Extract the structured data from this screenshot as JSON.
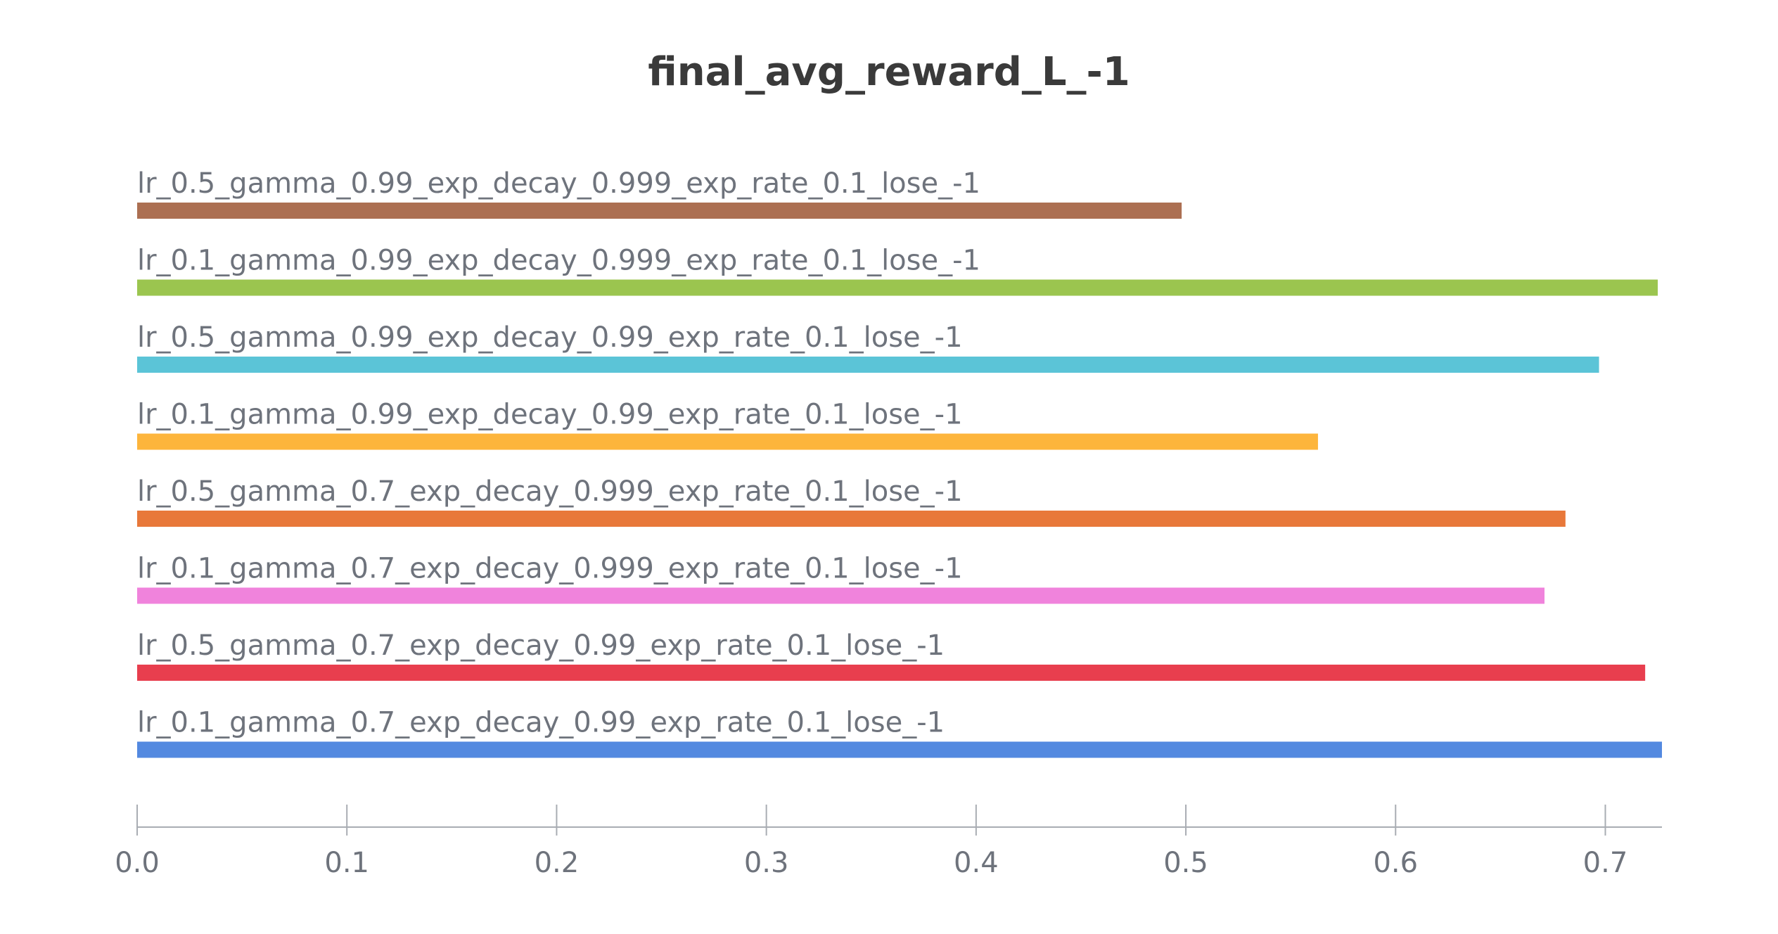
{
  "chart_data": {
    "type": "bar",
    "orientation": "horizontal",
    "title": "final_avg_reward_L_-1",
    "xlim": [
      0,
      0.727
    ],
    "xticks": [
      0.0,
      0.1,
      0.2,
      0.3,
      0.4,
      0.5,
      0.6,
      0.7
    ],
    "xtick_labels": [
      "0.0",
      "0.1",
      "0.2",
      "0.3",
      "0.4",
      "0.5",
      "0.6",
      "0.7"
    ],
    "grid": false,
    "bars": [
      {
        "label": "lr_0.5_gamma_0.99_exp_decay_0.999_exp_rate_0.1_lose_-1",
        "value": 0.498,
        "color": "#ac6f52"
      },
      {
        "label": "lr_0.1_gamma_0.99_exp_decay_0.999_exp_rate_0.1_lose_-1",
        "value": 0.725,
        "color": "#9bc54f"
      },
      {
        "label": "lr_0.5_gamma_0.99_exp_decay_0.99_exp_rate_0.1_lose_-1",
        "value": 0.697,
        "color": "#5bc4d7"
      },
      {
        "label": "lr_0.1_gamma_0.99_exp_decay_0.99_exp_rate_0.1_lose_-1",
        "value": 0.563,
        "color": "#fdb53c"
      },
      {
        "label": "lr_0.5_gamma_0.7_exp_decay_0.999_exp_rate_0.1_lose_-1",
        "value": 0.681,
        "color": "#e8783a"
      },
      {
        "label": "lr_0.1_gamma_0.7_exp_decay_0.999_exp_rate_0.1_lose_-1",
        "value": 0.671,
        "color": "#f083dc"
      },
      {
        "label": "lr_0.5_gamma_0.7_exp_decay_0.99_exp_rate_0.1_lose_-1",
        "value": 0.719,
        "color": "#e83e4e"
      },
      {
        "label": "lr_0.1_gamma_0.7_exp_decay_0.99_exp_rate_0.1_lose_-1",
        "value": 0.727,
        "color": "#5389e0"
      }
    ]
  }
}
